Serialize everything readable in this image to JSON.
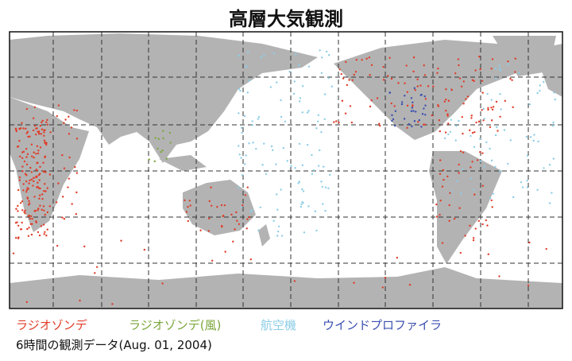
{
  "title": "高層大気観測",
  "legend": [
    {
      "label": "ラジオゾンデ",
      "color": "#e03c28"
    },
    {
      "label": "ラジオゾンデ(風)",
      "color": "#7aa63a"
    },
    {
      "label": "航空機",
      "color": "#8ccde6"
    },
    {
      "label": "ウインドプロファイラ",
      "color": "#3b4fb0"
    }
  ],
  "caption": "6時間の観測データ(Aug. 01, 2004)"
}
